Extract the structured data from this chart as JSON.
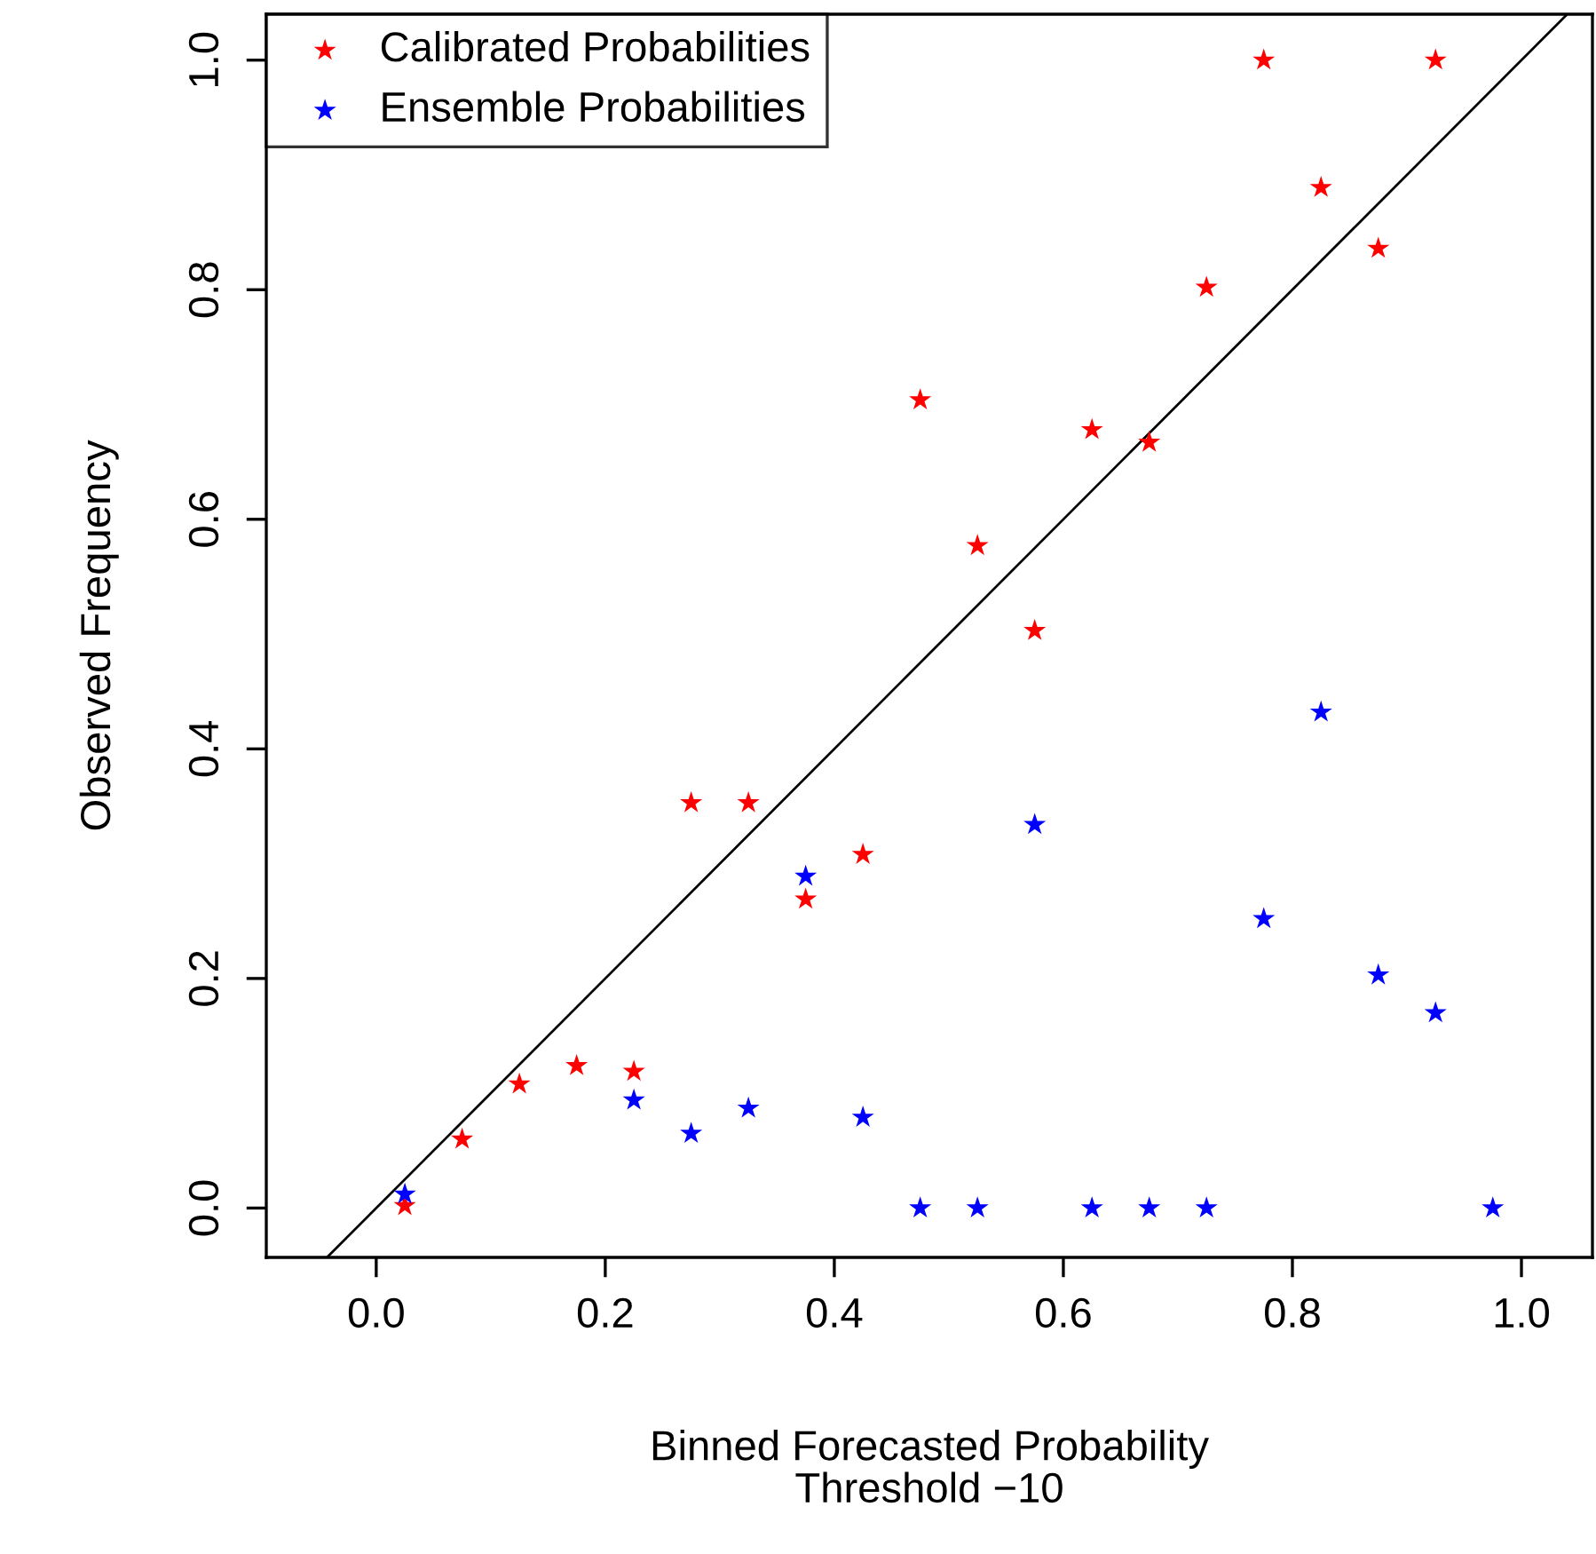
{
  "chart_data": {
    "type": "scatter",
    "xlabel": "Binned Forecasted Probability\nThreshold −10",
    "ylabel": "Observed Frequency",
    "xlim": [
      -0.096,
      1.062
    ],
    "ylim": [
      -0.043,
      1.04
    ],
    "xticks": [
      {
        "value": 0,
        "label": "0.0"
      },
      0.2,
      0.4,
      0.6,
      0.8,
      {
        "value": 1,
        "label": "1.0"
      }
    ],
    "yticks": [
      {
        "value": 0,
        "label": "0.0"
      },
      0.2,
      0.4,
      0.6,
      0.8,
      {
        "value": 1,
        "label": "1.0"
      }
    ],
    "grid": false,
    "legend": "top left",
    "series": [
      {
        "name": "Calibrated Probabilities",
        "color": "#ff0000",
        "marker": "star",
        "x": [
          0.025,
          0.075,
          0.125,
          0.175,
          0.225,
          0.275,
          0.325,
          0.375,
          0.425,
          0.475,
          0.525,
          0.575,
          0.625,
          0.675,
          0.725,
          0.775,
          0.825,
          0.875,
          0.925
        ],
        "values": [
          0.002,
          0.06,
          0.108,
          0.124,
          0.119,
          0.353,
          0.353,
          0.269,
          0.308,
          0.704,
          0.577,
          0.503,
          0.678,
          0.667,
          0.802,
          1.0,
          0.889,
          0.836,
          1.0
        ]
      },
      {
        "name": "Ensemble Probabilities",
        "color": "#0000ff",
        "marker": "star",
        "x": [
          0.025,
          0.225,
          0.275,
          0.325,
          0.375,
          0.425,
          0.475,
          0.525,
          0.575,
          0.625,
          0.675,
          0.725,
          0.775,
          0.825,
          0.875,
          0.925,
          0.975
        ],
        "values": [
          0.012,
          0.094,
          0.065,
          0.087,
          0.289,
          0.079,
          0,
          0,
          0.334,
          0,
          0,
          0,
          0.252,
          0.432,
          0.203,
          0.17,
          0
        ]
      },
      {
        "type": "line",
        "color": "#000000",
        "x": [
          -0.043,
          1.04
        ],
        "values": [
          -0.043,
          1.04
        ]
      }
    ]
  }
}
